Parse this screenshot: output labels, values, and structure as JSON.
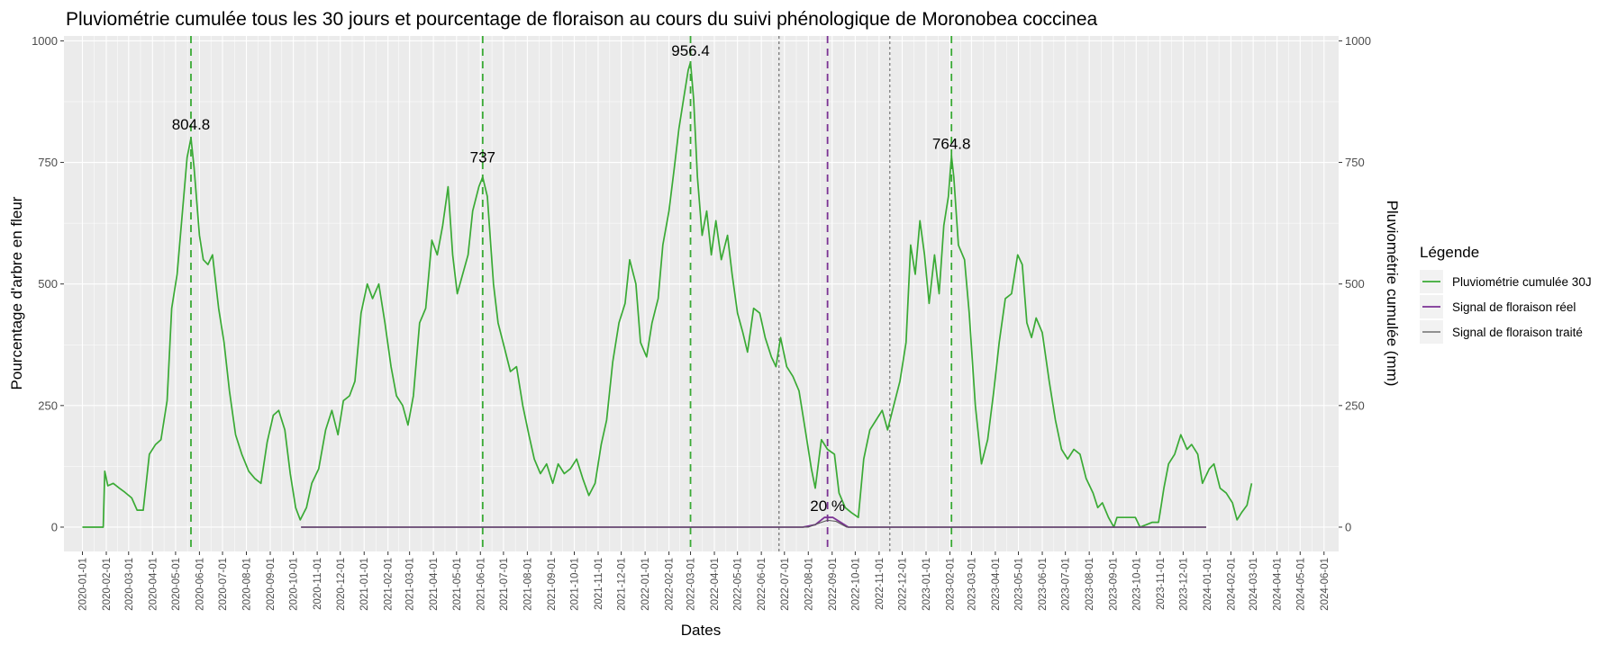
{
  "chart_data": {
    "type": "line",
    "title": "Pluviométrie cumulée tous les 30 jours et pourcentage de floraison au cours du suivi phénologique de Moronobea coccinea",
    "xlabel": "Dates",
    "ylabel_left": "Pourcentage d'arbre en fleur",
    "ylabel_right": "Pluviométrie cumulée (mm)",
    "ylim": [
      -50,
      1010
    ],
    "yticks": [
      0,
      250,
      500,
      750,
      1000
    ],
    "xlim": [
      "2019-12-08",
      "2024-06-20"
    ],
    "xticks": [
      "2020-01-01",
      "2020-02-01",
      "2020-03-01",
      "2020-04-01",
      "2020-05-01",
      "2020-06-01",
      "2020-07-01",
      "2020-08-01",
      "2020-09-01",
      "2020-10-01",
      "2020-11-01",
      "2020-12-01",
      "2021-01-01",
      "2021-02-01",
      "2021-03-01",
      "2021-04-01",
      "2021-05-01",
      "2021-06-01",
      "2021-07-01",
      "2021-08-01",
      "2021-09-01",
      "2021-10-01",
      "2021-11-01",
      "2021-12-01",
      "2022-01-01",
      "2022-02-01",
      "2022-03-01",
      "2022-04-01",
      "2022-05-01",
      "2022-06-01",
      "2022-07-01",
      "2022-08-01",
      "2022-09-01",
      "2022-10-01",
      "2022-11-01",
      "2022-12-01",
      "2023-01-01",
      "2023-02-01",
      "2023-03-01",
      "2023-04-01",
      "2023-05-01",
      "2023-06-01",
      "2023-07-01",
      "2023-08-01",
      "2023-09-01",
      "2023-10-01",
      "2023-11-01",
      "2023-12-01",
      "2024-01-01",
      "2024-02-01",
      "2024-03-01",
      "2024-04-01",
      "2024-05-01",
      "2024-06-01"
    ],
    "grid": true,
    "legend": {
      "title": "Légende",
      "position": "right",
      "entries": [
        {
          "name": "Pluviométrie cumulée 30J",
          "color": "#3aaa35"
        },
        {
          "name": "Signal de floraison réel",
          "color": "#7b3294"
        },
        {
          "name": "Signal de floraison traité",
          "color": "#555555"
        }
      ]
    },
    "series": [
      {
        "name": "Pluviométrie cumulée 30J",
        "color": "#3aaa35",
        "points": [
          [
            "2020-01-01",
            0
          ],
          [
            "2020-01-28",
            0
          ],
          [
            "2020-01-30",
            115
          ],
          [
            "2020-02-03",
            85
          ],
          [
            "2020-02-10",
            90
          ],
          [
            "2020-02-18",
            80
          ],
          [
            "2020-02-25",
            72
          ],
          [
            "2020-03-05",
            60
          ],
          [
            "2020-03-12",
            35
          ],
          [
            "2020-03-20",
            35
          ],
          [
            "2020-03-28",
            150
          ],
          [
            "2020-04-05",
            170
          ],
          [
            "2020-04-12",
            180
          ],
          [
            "2020-04-20",
            260
          ],
          [
            "2020-04-26",
            450
          ],
          [
            "2020-05-03",
            520
          ],
          [
            "2020-05-10",
            650
          ],
          [
            "2020-05-16",
            760
          ],
          [
            "2020-05-21",
            800
          ],
          [
            "2020-05-25",
            740
          ],
          [
            "2020-06-01",
            600
          ],
          [
            "2020-06-06",
            550
          ],
          [
            "2020-06-12",
            540
          ],
          [
            "2020-06-18",
            560
          ],
          [
            "2020-06-26",
            450
          ],
          [
            "2020-07-03",
            380
          ],
          [
            "2020-07-10",
            280
          ],
          [
            "2020-07-18",
            190
          ],
          [
            "2020-07-26",
            150
          ],
          [
            "2020-08-04",
            115
          ],
          [
            "2020-08-12",
            100
          ],
          [
            "2020-08-20",
            90
          ],
          [
            "2020-08-28",
            175
          ],
          [
            "2020-09-05",
            230
          ],
          [
            "2020-09-12",
            240
          ],
          [
            "2020-09-20",
            200
          ],
          [
            "2020-09-27",
            110
          ],
          [
            "2020-10-04",
            40
          ],
          [
            "2020-10-10",
            15
          ],
          [
            "2020-10-18",
            40
          ],
          [
            "2020-10-25",
            90
          ],
          [
            "2020-11-03",
            120
          ],
          [
            "2020-11-12",
            200
          ],
          [
            "2020-11-20",
            240
          ],
          [
            "2020-11-28",
            190
          ],
          [
            "2020-12-05",
            260
          ],
          [
            "2020-12-13",
            270
          ],
          [
            "2020-12-20",
            300
          ],
          [
            "2020-12-28",
            440
          ],
          [
            "2021-01-05",
            500
          ],
          [
            "2021-01-12",
            470
          ],
          [
            "2021-01-20",
            500
          ],
          [
            "2021-01-28",
            420
          ],
          [
            "2021-02-05",
            330
          ],
          [
            "2021-02-12",
            270
          ],
          [
            "2021-02-20",
            250
          ],
          [
            "2021-02-27",
            210
          ],
          [
            "2021-03-06",
            270
          ],
          [
            "2021-03-14",
            420
          ],
          [
            "2021-03-22",
            450
          ],
          [
            "2021-03-30",
            590
          ],
          [
            "2021-04-06",
            560
          ],
          [
            "2021-04-13",
            620
          ],
          [
            "2021-04-20",
            700
          ],
          [
            "2021-04-26",
            560
          ],
          [
            "2021-05-02",
            480
          ],
          [
            "2021-05-09",
            520
          ],
          [
            "2021-05-16",
            560
          ],
          [
            "2021-05-22",
            650
          ],
          [
            "2021-05-30",
            700
          ],
          [
            "2021-06-04",
            720
          ],
          [
            "2021-06-10",
            680
          ],
          [
            "2021-06-18",
            500
          ],
          [
            "2021-06-24",
            420
          ],
          [
            "2021-07-02",
            370
          ],
          [
            "2021-07-10",
            320
          ],
          [
            "2021-07-18",
            330
          ],
          [
            "2021-07-26",
            250
          ],
          [
            "2021-08-03",
            190
          ],
          [
            "2021-08-10",
            140
          ],
          [
            "2021-08-18",
            110
          ],
          [
            "2021-08-26",
            130
          ],
          [
            "2021-09-03",
            90
          ],
          [
            "2021-09-10",
            130
          ],
          [
            "2021-09-18",
            110
          ],
          [
            "2021-09-26",
            120
          ],
          [
            "2021-10-04",
            140
          ],
          [
            "2021-10-12",
            100
          ],
          [
            "2021-10-20",
            65
          ],
          [
            "2021-10-28",
            90
          ],
          [
            "2021-11-05",
            170
          ],
          [
            "2021-11-12",
            220
          ],
          [
            "2021-11-20",
            340
          ],
          [
            "2021-11-28",
            420
          ],
          [
            "2021-12-06",
            460
          ],
          [
            "2021-12-12",
            550
          ],
          [
            "2021-12-20",
            500
          ],
          [
            "2021-12-26",
            380
          ],
          [
            "2022-01-03",
            350
          ],
          [
            "2022-01-10",
            420
          ],
          [
            "2022-01-18",
            470
          ],
          [
            "2022-01-24",
            580
          ],
          [
            "2022-02-01",
            650
          ],
          [
            "2022-02-08",
            740
          ],
          [
            "2022-02-14",
            820
          ],
          [
            "2022-02-20",
            880
          ],
          [
            "2022-02-26",
            940
          ],
          [
            "2022-03-01",
            956
          ],
          [
            "2022-03-05",
            880
          ],
          [
            "2022-03-10",
            720
          ],
          [
            "2022-03-16",
            600
          ],
          [
            "2022-03-22",
            650
          ],
          [
            "2022-03-28",
            560
          ],
          [
            "2022-04-03",
            630
          ],
          [
            "2022-04-10",
            550
          ],
          [
            "2022-04-18",
            600
          ],
          [
            "2022-04-24",
            520
          ],
          [
            "2022-05-01",
            440
          ],
          [
            "2022-05-08",
            400
          ],
          [
            "2022-05-14",
            360
          ],
          [
            "2022-05-22",
            450
          ],
          [
            "2022-05-30",
            440
          ],
          [
            "2022-06-06",
            390
          ],
          [
            "2022-06-14",
            350
          ],
          [
            "2022-06-20",
            330
          ],
          [
            "2022-06-26",
            390
          ],
          [
            "2022-07-04",
            330
          ],
          [
            "2022-07-12",
            310
          ],
          [
            "2022-07-20",
            280
          ],
          [
            "2022-07-28",
            200
          ],
          [
            "2022-08-05",
            120
          ],
          [
            "2022-08-10",
            80
          ],
          [
            "2022-08-18",
            180
          ],
          [
            "2022-08-26",
            160
          ],
          [
            "2022-09-04",
            150
          ],
          [
            "2022-09-10",
            70
          ],
          [
            "2022-09-18",
            40
          ],
          [
            "2022-09-26",
            30
          ],
          [
            "2022-10-05",
            20
          ],
          [
            "2022-10-12",
            140
          ],
          [
            "2022-10-20",
            200
          ],
          [
            "2022-10-28",
            220
          ],
          [
            "2022-11-05",
            240
          ],
          [
            "2022-11-12",
            200
          ],
          [
            "2022-11-20",
            250
          ],
          [
            "2022-11-28",
            300
          ],
          [
            "2022-12-06",
            380
          ],
          [
            "2022-12-12",
            580
          ],
          [
            "2022-12-18",
            520
          ],
          [
            "2022-12-24",
            630
          ],
          [
            "2022-12-30",
            560
          ],
          [
            "2023-01-05",
            460
          ],
          [
            "2023-01-12",
            560
          ],
          [
            "2023-01-18",
            480
          ],
          [
            "2023-01-24",
            620
          ],
          [
            "2023-01-30",
            680
          ],
          [
            "2023-02-03",
            764
          ],
          [
            "2023-02-06",
            720
          ],
          [
            "2023-02-12",
            580
          ],
          [
            "2023-02-20",
            550
          ],
          [
            "2023-02-26",
            440
          ],
          [
            "2023-03-06",
            250
          ],
          [
            "2023-03-14",
            130
          ],
          [
            "2023-03-22",
            180
          ],
          [
            "2023-03-30",
            280
          ],
          [
            "2023-04-06",
            380
          ],
          [
            "2023-04-14",
            470
          ],
          [
            "2023-04-22",
            480
          ],
          [
            "2023-04-30",
            560
          ],
          [
            "2023-05-06",
            540
          ],
          [
            "2023-05-12",
            420
          ],
          [
            "2023-05-18",
            390
          ],
          [
            "2023-05-24",
            430
          ],
          [
            "2023-06-01",
            400
          ],
          [
            "2023-06-10",
            300
          ],
          [
            "2023-06-18",
            220
          ],
          [
            "2023-06-26",
            160
          ],
          [
            "2023-07-04",
            140
          ],
          [
            "2023-07-12",
            160
          ],
          [
            "2023-07-20",
            150
          ],
          [
            "2023-07-28",
            100
          ],
          [
            "2023-08-06",
            70
          ],
          [
            "2023-08-12",
            40
          ],
          [
            "2023-08-18",
            50
          ],
          [
            "2023-08-26",
            20
          ],
          [
            "2023-09-02",
            0
          ],
          [
            "2023-09-06",
            20
          ],
          [
            "2023-09-14",
            20
          ],
          [
            "2023-09-22",
            20
          ],
          [
            "2023-09-30",
            20
          ],
          [
            "2023-10-06",
            0
          ],
          [
            "2023-10-14",
            5
          ],
          [
            "2023-10-22",
            10
          ],
          [
            "2023-10-30",
            10
          ],
          [
            "2023-11-06",
            80
          ],
          [
            "2023-11-12",
            130
          ],
          [
            "2023-11-20",
            150
          ],
          [
            "2023-11-28",
            190
          ],
          [
            "2023-12-06",
            160
          ],
          [
            "2023-12-12",
            170
          ],
          [
            "2023-12-20",
            150
          ],
          [
            "2023-12-26",
            90
          ],
          [
            "2024-01-04",
            120
          ],
          [
            "2024-01-10",
            130
          ],
          [
            "2024-01-18",
            80
          ],
          [
            "2024-01-26",
            70
          ],
          [
            "2024-02-03",
            50
          ],
          [
            "2024-02-09",
            15
          ],
          [
            "2024-02-15",
            30
          ],
          [
            "2024-02-22",
            45
          ],
          [
            "2024-02-28",
            90
          ]
        ]
      },
      {
        "name": "Signal de floraison réel",
        "color": "#7b3294",
        "points": [
          [
            "2020-10-11",
            0
          ],
          [
            "2022-07-25",
            0
          ],
          [
            "2022-08-10",
            5
          ],
          [
            "2022-08-22",
            20
          ],
          [
            "2022-09-02",
            20
          ],
          [
            "2022-09-12",
            10
          ],
          [
            "2022-09-22",
            0
          ],
          [
            "2023-12-31",
            0
          ]
        ]
      },
      {
        "name": "Signal de floraison traité",
        "color": "#555555",
        "points": [
          [
            "2020-10-11",
            0
          ],
          [
            "2022-08-01",
            0
          ],
          [
            "2022-08-18",
            10
          ],
          [
            "2022-08-26",
            14
          ],
          [
            "2022-09-06",
            12
          ],
          [
            "2022-09-20",
            0
          ],
          [
            "2023-12-31",
            0
          ]
        ]
      }
    ],
    "vlines": [
      {
        "date": "2020-05-21",
        "color": "#3aaa35",
        "dash": "green"
      },
      {
        "date": "2021-06-04",
        "color": "#3aaa35",
        "dash": "green"
      },
      {
        "date": "2022-03-01",
        "color": "#3aaa35",
        "dash": "green"
      },
      {
        "date": "2023-02-03",
        "color": "#3aaa35",
        "dash": "green"
      },
      {
        "date": "2022-06-24",
        "color": "#555555",
        "dash": "grey"
      },
      {
        "date": "2022-11-15",
        "color": "#555555",
        "dash": "grey"
      },
      {
        "date": "2022-08-26",
        "color": "#7b3294",
        "dash": "purple"
      }
    ],
    "annotations": [
      {
        "text": "804.8",
        "date": "2020-05-21",
        "y": 804.8
      },
      {
        "text": "737",
        "date": "2021-06-04",
        "y": 737
      },
      {
        "text": "956.4",
        "date": "2022-03-01",
        "y": 956.4
      },
      {
        "text": "764.8",
        "date": "2023-02-03",
        "y": 764.8
      },
      {
        "text": "20 %",
        "date": "2022-08-26",
        "y": 20
      }
    ]
  }
}
